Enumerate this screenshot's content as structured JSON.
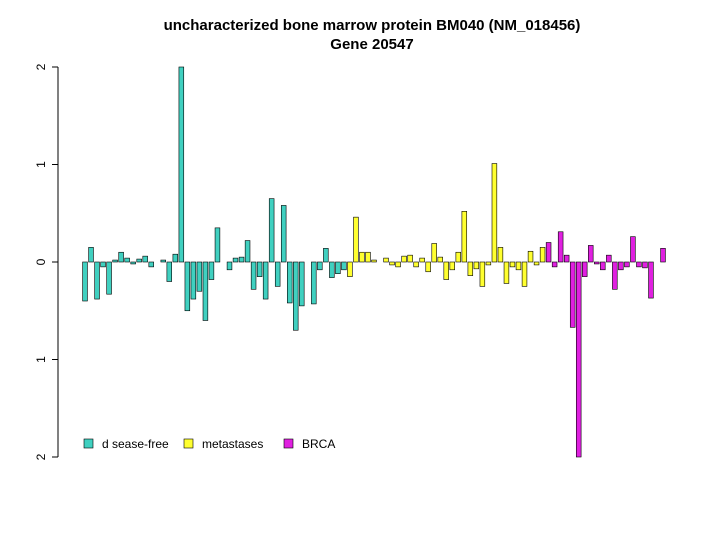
{
  "chart_data": {
    "type": "bar",
    "title": "uncharacterized bone marrow protein BM040 (NM_018456)",
    "subtitle": "Gene 20547",
    "ylim": [
      -2,
      2
    ],
    "yticks": [
      {
        "value": -2,
        "label": "2"
      },
      {
        "value": -1,
        "label": "1"
      },
      0,
      1,
      2
    ],
    "legend": "bottom-left",
    "series": [
      {
        "name": "d sease-free",
        "color": "#40d0c0",
        "values": [
          -0.4,
          0.15,
          -0.38,
          -0.05,
          -0.33,
          0.02,
          0.1,
          0.04,
          -0.02,
          0.03,
          0.06,
          -0.05,
          0.0,
          0.02,
          -0.2,
          0.08,
          2.0,
          -0.5,
          -0.38,
          -0.3,
          -0.6,
          -0.18,
          0.35,
          0.0,
          -0.08,
          0.04,
          0.05,
          0.22,
          -0.28,
          -0.15,
          -0.38,
          0.65,
          -0.25,
          0.58,
          -0.42,
          -0.7,
          -0.45,
          0.0,
          -0.43,
          -0.08,
          0.14,
          -0.16,
          -0.12,
          -0.08
        ]
      },
      {
        "name": "metastases",
        "color": "#ffff30",
        "values": [
          -0.15,
          0.46,
          0.1,
          0.1,
          0.02,
          0.0,
          0.04,
          -0.03,
          -0.05,
          0.06,
          0.07,
          -0.05,
          0.04,
          -0.1,
          0.19,
          0.05,
          -0.18,
          -0.08,
          0.1,
          0.52,
          -0.14,
          -0.07,
          -0.25,
          -0.03,
          1.01,
          0.15,
          -0.22,
          -0.05,
          -0.08,
          -0.25,
          0.11,
          -0.03,
          0.15
        ]
      },
      {
        "name": "BRCA",
        "color": "#e020e0",
        "values": [
          0.2,
          -0.05,
          0.31,
          0.07,
          -0.67,
          -2.0,
          -0.15,
          0.17,
          -0.02,
          -0.08,
          0.07,
          -0.28,
          -0.08,
          -0.05,
          0.26,
          -0.05,
          -0.06,
          -0.37,
          0.0,
          0.14
        ]
      }
    ]
  }
}
